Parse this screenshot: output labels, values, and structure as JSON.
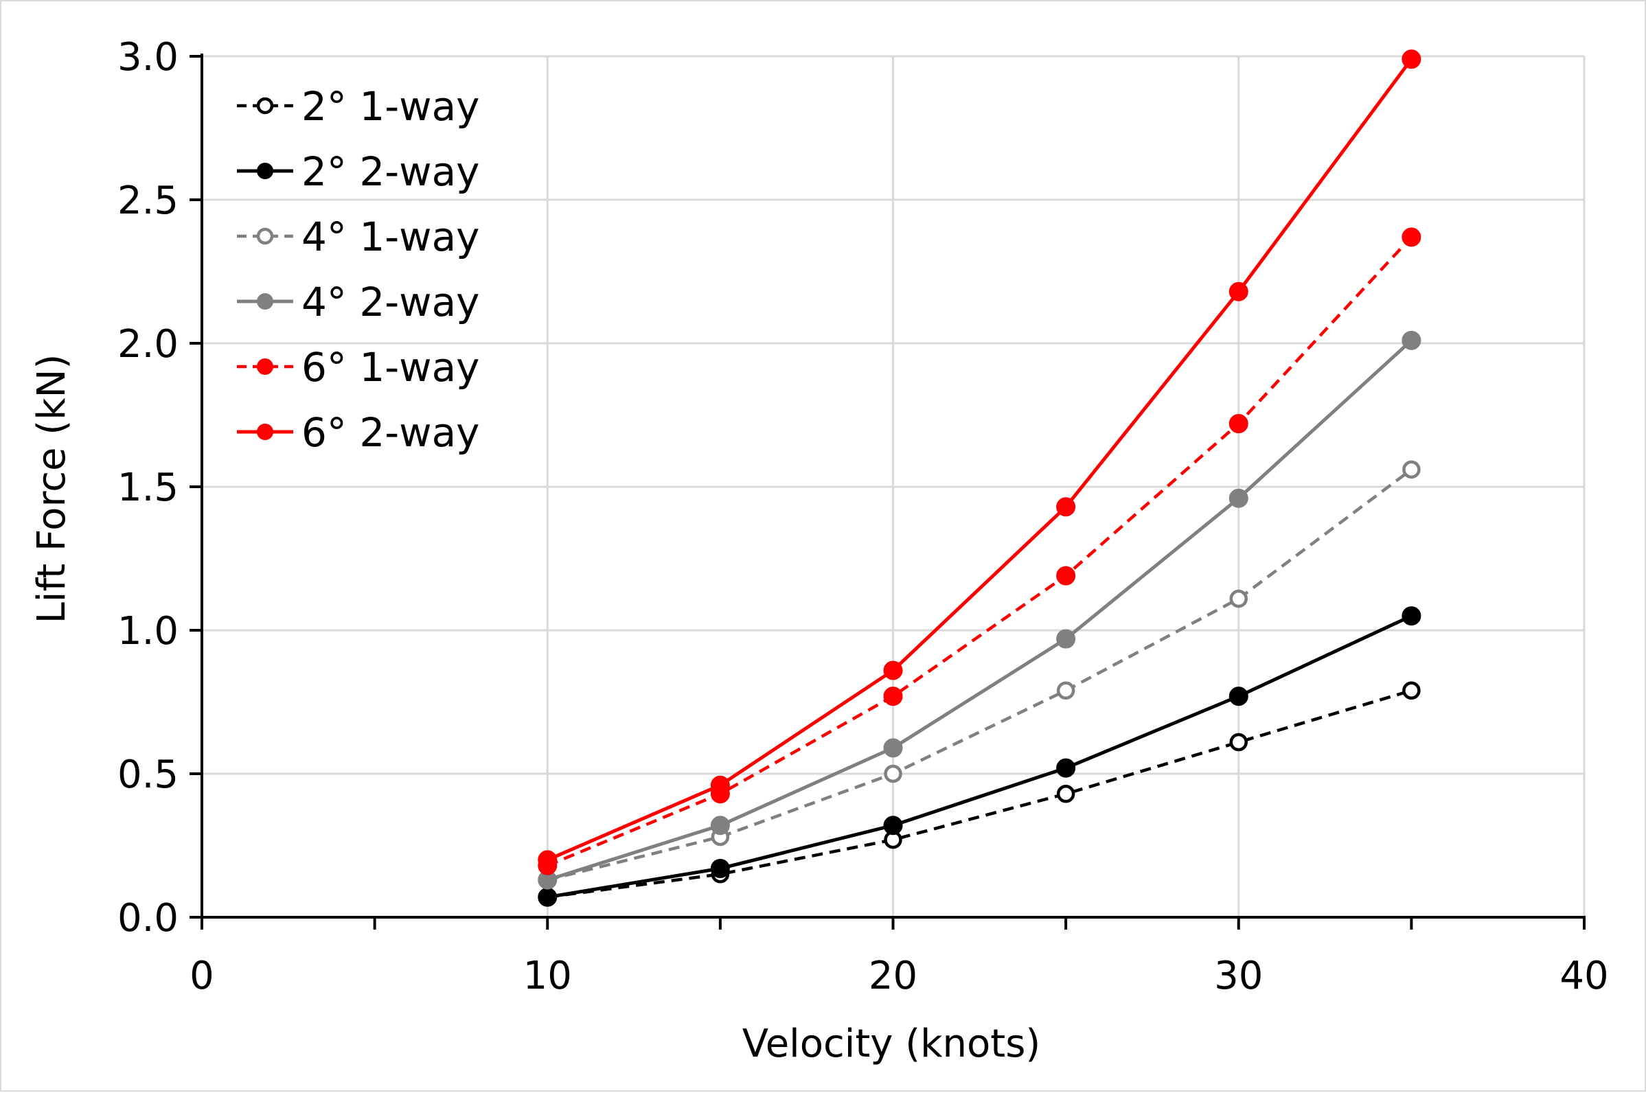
{
  "chart_data": {
    "type": "line",
    "title": "",
    "xlabel": "Velocity (knots)",
    "ylabel": "Lift Force (kN)",
    "xlim": [
      0,
      40
    ],
    "ylim": [
      0,
      3.0
    ],
    "x_ticks": [
      0,
      10,
      20,
      30,
      40
    ],
    "x_minor_ticks": [
      5,
      15,
      25,
      35
    ],
    "y_ticks": [
      0.0,
      0.5,
      1.0,
      1.5,
      2.0,
      2.5,
      3.0
    ],
    "x_tick_labels": [
      "0",
      "10",
      "20",
      "30",
      "40"
    ],
    "y_tick_labels": [
      "0.0",
      "0.5",
      "1.0",
      "1.5",
      "2.0",
      "2.5",
      "3.0"
    ],
    "grid": true,
    "legend_position": "top-left",
    "x": [
      10,
      15,
      20,
      25,
      30,
      35
    ],
    "series": [
      {
        "name": "2° 1-way",
        "color": "#000000",
        "dashed": true,
        "marker": "open",
        "values": [
          0.07,
          0.15,
          0.27,
          0.43,
          0.61,
          0.79
        ]
      },
      {
        "name": "2° 2-way",
        "color": "#000000",
        "dashed": false,
        "marker": "filled",
        "values": [
          0.07,
          0.17,
          0.32,
          0.52,
          0.77,
          1.05
        ]
      },
      {
        "name": "4° 1-way",
        "color": "#808080",
        "dashed": true,
        "marker": "open",
        "values": [
          0.13,
          0.28,
          0.5,
          0.79,
          1.11,
          1.56
        ]
      },
      {
        "name": "4° 2-way",
        "color": "#808080",
        "dashed": false,
        "marker": "filled",
        "values": [
          0.13,
          0.32,
          0.59,
          0.97,
          1.46,
          2.01
        ]
      },
      {
        "name": "6° 1-way",
        "color": "#ff0000",
        "dashed": true,
        "marker": "filled",
        "values": [
          0.18,
          0.43,
          0.77,
          1.19,
          1.72,
          2.37
        ]
      },
      {
        "name": "6° 2-way",
        "color": "#ff0000",
        "dashed": false,
        "marker": "filled",
        "values": [
          0.2,
          0.46,
          0.86,
          1.43,
          2.18,
          2.99
        ]
      }
    ]
  }
}
